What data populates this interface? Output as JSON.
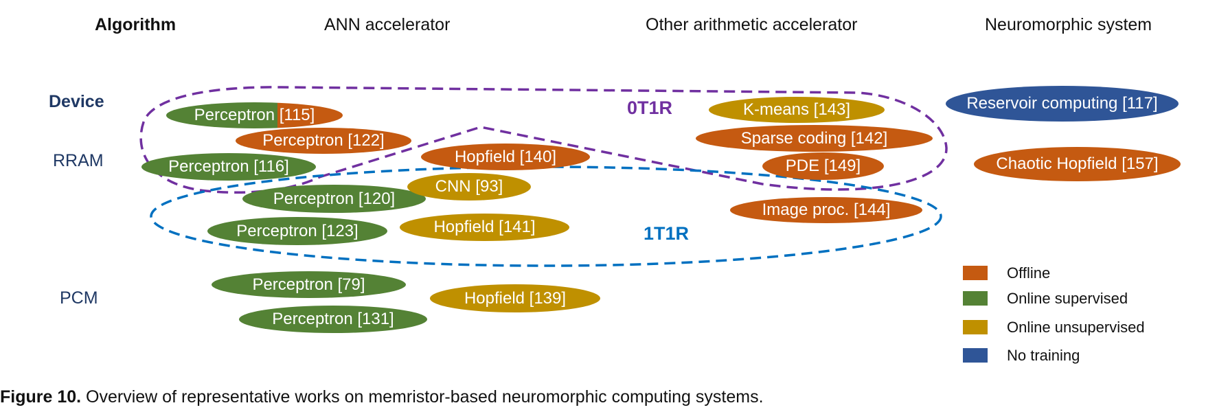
{
  "headers": {
    "algorithm": "Algorithm",
    "ann": "ANN  accelerator",
    "other": "Other arithmetic accelerator",
    "neuro": "Neuromorphic system"
  },
  "rows": {
    "device": "Device",
    "rram": "RRAM",
    "pcm": "PCM"
  },
  "groups": {
    "g0t1r": "0T1R",
    "g1t1r": "1T1R"
  },
  "colors": {
    "offline": "#c55a11",
    "online_supervised": "#548235",
    "online_unsupervised": "#bf9000",
    "no_training": "#2f5597",
    "purple_dash": "#7030a0",
    "blue_dash": "#0070c0"
  },
  "works": [
    {
      "label": "Perceptron [115]",
      "category": "online_supervised+offline"
    },
    {
      "label": "Perceptron [122]",
      "category": "offline"
    },
    {
      "label": "Perceptron [116]",
      "category": "online_supervised"
    },
    {
      "label": "Hopfield [140]",
      "category": "offline"
    },
    {
      "label": "K-means [143]",
      "category": "online_unsupervised"
    },
    {
      "label": "Sparse coding [142]",
      "category": "offline"
    },
    {
      "label": "PDE [149]",
      "category": "offline"
    },
    {
      "label": "Reservoir computing [117]",
      "category": "no_training"
    },
    {
      "label": "Chaotic Hopfield [157]",
      "category": "offline"
    },
    {
      "label": "Perceptron [120]",
      "category": "online_supervised"
    },
    {
      "label": "CNN [93]",
      "category": "online_unsupervised"
    },
    {
      "label": "Perceptron [123]",
      "category": "online_supervised"
    },
    {
      "label": "Hopfield [141]",
      "category": "online_unsupervised"
    },
    {
      "label": "Image proc. [144]",
      "category": "offline"
    },
    {
      "label": "Perceptron [79]",
      "category": "online_supervised"
    },
    {
      "label": "Hopfield [139]",
      "category": "online_unsupervised"
    },
    {
      "label": "Perceptron [131]",
      "category": "online_supervised"
    }
  ],
  "legend": [
    {
      "label": "Offline",
      "color": "#c55a11"
    },
    {
      "label": "Online supervised",
      "color": "#548235"
    },
    {
      "label": "Online unsupervised",
      "color": "#bf9000"
    },
    {
      "label": "No training",
      "color": "#2f5597"
    }
  ],
  "caption": {
    "figure_label": "Figure 10.",
    "text": " Overview of representative works on memristor-based neuromorphic computing systems."
  }
}
